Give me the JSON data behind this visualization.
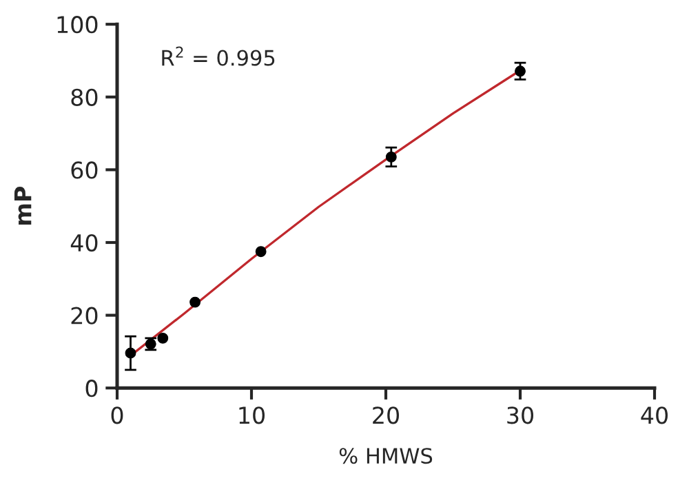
{
  "chart_data": {
    "type": "scatter",
    "xlabel": "% HMWS",
    "ylabel": "mP",
    "xlim": [
      0,
      40
    ],
    "ylim": [
      0,
      100
    ],
    "xticks": [
      0,
      10,
      20,
      30,
      40
    ],
    "yticks": [
      0,
      20,
      40,
      60,
      80,
      100
    ],
    "grid": false,
    "annotations": [
      "R$^{2}$ = 0.995"
    ],
    "series": [
      {
        "marker": "circle",
        "color": "#000000",
        "x": [
          1.0,
          2.5,
          3.4,
          5.8,
          10.7,
          20.4,
          30.0
        ],
        "values": [
          9.6,
          12.1,
          13.7,
          23.6,
          37.5,
          63.5,
          87.1
        ],
        "errors": [
          4.6,
          1.6,
          null,
          null,
          null,
          2.6,
          2.3
        ]
      },
      {
        "type": "line",
        "marker": "none",
        "color": "#c0282d",
        "x": [
          1.0,
          5,
          10,
          15,
          20,
          25,
          30
        ],
        "values": [
          8.9,
          20.5,
          35.5,
          49.8,
          62.8,
          75.5,
          87.3
        ]
      }
    ]
  }
}
